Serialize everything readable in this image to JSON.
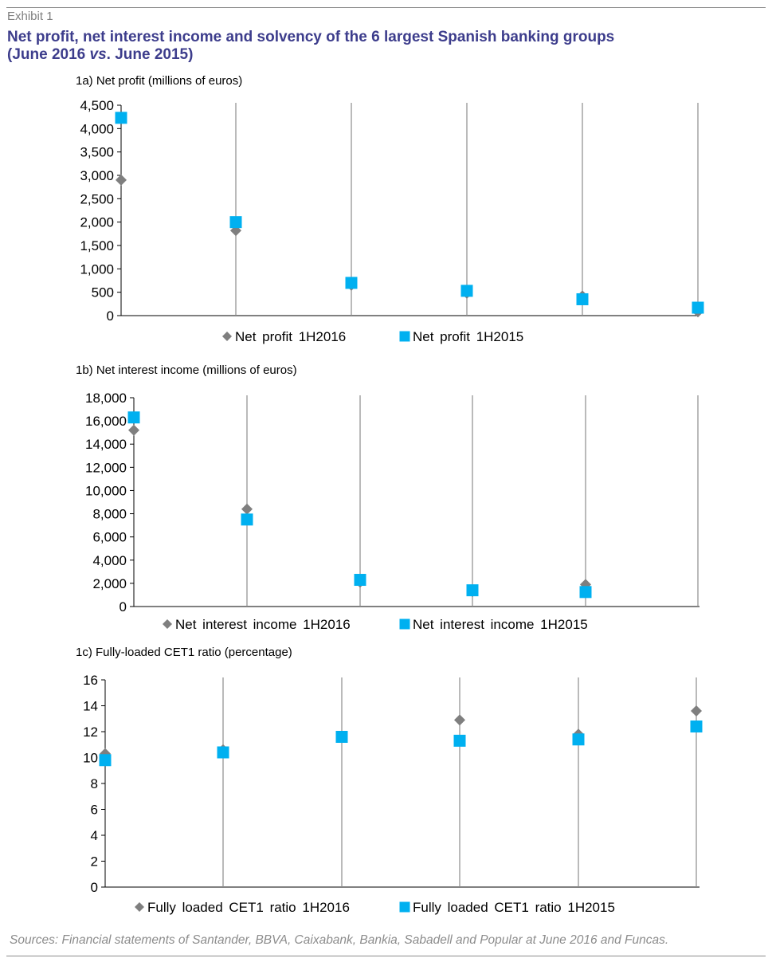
{
  "header": {
    "exhibit": "Exhibit 1",
    "title_line1": "Net profit, net interest income and solvency of the 6 largest Spanish banking groups",
    "title_line2_part1": "(June 2016 ",
    "title_line2_italic": "vs",
    "title_line2_part2": ". June 2015)"
  },
  "sources": "Sources: Financial statements of Santander, BBVA, Caixabank, Bankia, Sabadell and Popular at June 2016 and Funcas.",
  "colors": {
    "series_2016": "#7f7f7f",
    "series_2015": "#00b0f0",
    "title": "#3d3d8c"
  },
  "chart_data": [
    {
      "type": "scatter",
      "title": "1a) Net profit (millions of euros)",
      "ylim": [
        0,
        4500
      ],
      "yticks": [
        0,
        500,
        1000,
        1500,
        2000,
        2500,
        3000,
        3500,
        4000,
        4500
      ],
      "ytick_labels": [
        "0",
        "500",
        "1,000",
        "1,500",
        "2,000",
        "2,500",
        "3,000",
        "3,500",
        "4,000",
        "4,500"
      ],
      "categories_count": 6,
      "series": [
        {
          "name": "Net profit 1H2016",
          "marker": "diamond",
          "values": [
            2900,
            1820,
            650,
            480,
            420,
            80
          ]
        },
        {
          "name": "Net profit 1H2015",
          "marker": "square",
          "values": [
            4230,
            2000,
            700,
            530,
            350,
            170
          ]
        }
      ],
      "legend": "bottom"
    },
    {
      "type": "scatter",
      "title": "1b) Net interest income (millions of euros)",
      "ylim": [
        0,
        18000
      ],
      "yticks": [
        0,
        2000,
        4000,
        6000,
        8000,
        10000,
        12000,
        14000,
        16000,
        18000
      ],
      "ytick_labels": [
        "0",
        "2,000",
        "4,000",
        "6,000",
        "8,000",
        "10,000",
        "12,000",
        "14,000",
        "16,000",
        "18,000"
      ],
      "categories_count": 6,
      "series": [
        {
          "name": "Net interest income 1H2016",
          "marker": "diamond",
          "values": [
            15200,
            8400,
            2100,
            1300,
            1900,
            null
          ]
        },
        {
          "name": "Net interest income 1H2015",
          "marker": "square",
          "values": [
            16300,
            7500,
            2300,
            1400,
            1250,
            null
          ]
        }
      ],
      "legend": "bottom"
    },
    {
      "type": "scatter",
      "title": "1c) Fully-loaded CET1 ratio (percentage)",
      "ylim": [
        0,
        16
      ],
      "yticks": [
        0,
        2,
        4,
        6,
        8,
        10,
        12,
        14,
        16
      ],
      "ytick_labels": [
        "0",
        "2",
        "4",
        "6",
        "8",
        "10",
        "12",
        "14",
        "16"
      ],
      "categories_count": 6,
      "series": [
        {
          "name": "Fully loaded CET1 ratio 1H2016",
          "marker": "diamond",
          "values": [
            10.3,
            10.6,
            11.6,
            12.9,
            11.8,
            13.6
          ]
        },
        {
          "name": "Fully loaded CET1 ratio 1H2015",
          "marker": "square",
          "values": [
            9.8,
            10.4,
            11.6,
            11.3,
            11.4,
            12.4
          ]
        }
      ],
      "legend": "bottom"
    }
  ]
}
